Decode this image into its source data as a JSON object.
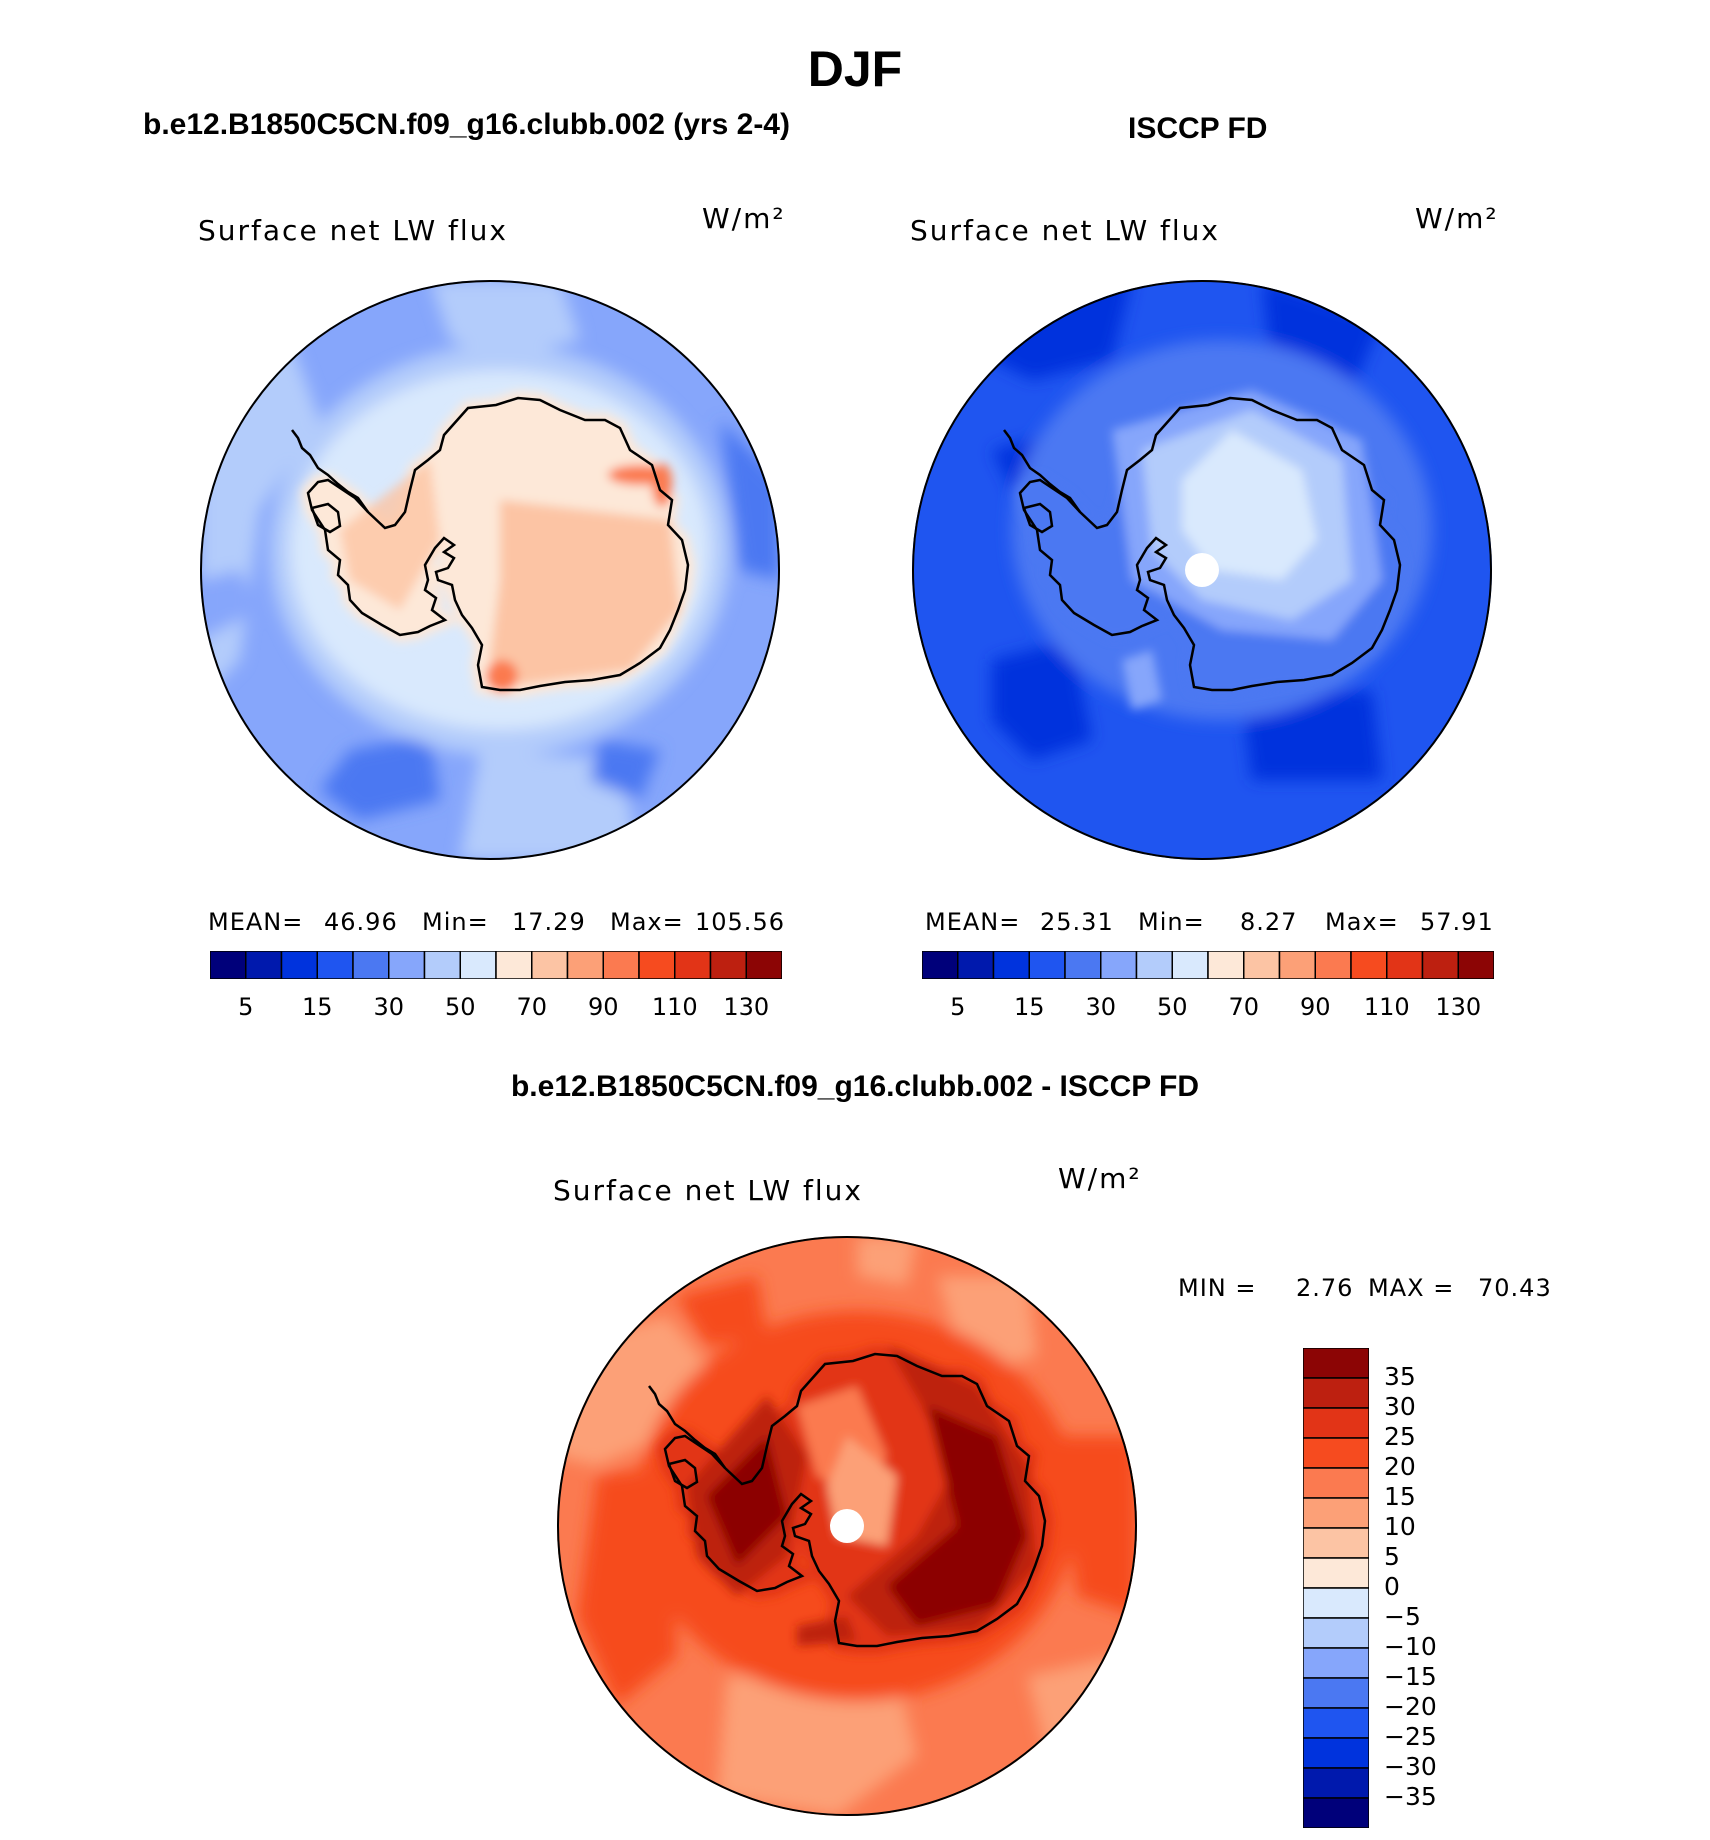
{
  "season": "DJF",
  "panels": {
    "model": {
      "header": "b.e12.B1850C5CN.f09_g16.clubb.002 (yrs 2-4)",
      "variable": "Surface net LW flux",
      "units": "W/m²",
      "mean_label": "MEAN=",
      "mean": "46.96",
      "min_label": "Min=",
      "min": "17.29",
      "max_label": "Max=",
      "max": "105.56"
    },
    "obs": {
      "header": "ISCCP FD",
      "variable": "Surface net LW flux",
      "units": "W/m²",
      "mean_label": "MEAN=",
      "mean": "25.31",
      "min_label": "Min=",
      "min": "8.27",
      "max_label": "Max=",
      "max": "57.91"
    },
    "diff": {
      "header": "b.e12.B1850C5CN.f09_g16.clubb.002 - ISCCP FD",
      "variable": "Surface net LW flux",
      "units": "W/m²",
      "min_label": "MIN =",
      "min": "2.76",
      "max_label": "MAX =",
      "max": "70.43"
    }
  },
  "colorbar_abs": {
    "ticks": [
      "5",
      "15",
      "30",
      "50",
      "70",
      "90",
      "110",
      "130"
    ],
    "colors": [
      "#00007a",
      "#0019ad",
      "#0033dd",
      "#1f55f0",
      "#4b78f2",
      "#86a6fb",
      "#b3ccfb",
      "#d9e9fd",
      "#fde8d8",
      "#fcc4a4",
      "#fca077",
      "#fb7a50",
      "#f64b1f",
      "#e23417",
      "#bd2010",
      "#8c0505"
    ]
  },
  "colorbar_diff": {
    "ticks": [
      "35",
      "30",
      "25",
      "20",
      "15",
      "10",
      "5",
      "0",
      "−5",
      "−10",
      "−15",
      "−20",
      "−25",
      "−30",
      "−35"
    ],
    "colors": [
      "#8c0505",
      "#bd2010",
      "#e23417",
      "#f64b1f",
      "#fb7a50",
      "#fca077",
      "#fcc4a4",
      "#fde8d8",
      "#d9e9fd",
      "#b3ccfb",
      "#86a6fb",
      "#4b78f2",
      "#1f55f0",
      "#0033dd",
      "#0019ad",
      "#00007a"
    ]
  },
  "chart_data": [
    {
      "type": "heatmap",
      "projection": "south-polar-stereographic",
      "title": "Surface net LW flux",
      "subtitle": "b.e12.B1850C5CN.f09_g16.clubb.002 (yrs 2-4)",
      "units": "W/m²",
      "mean": 46.96,
      "min": 17.29,
      "max": 105.56,
      "levels": [
        5,
        10,
        15,
        20,
        30,
        40,
        50,
        60,
        70,
        80,
        90,
        100,
        110,
        120,
        130
      ],
      "zones": {
        "ocean_far": 40,
        "ocean_mid": 45,
        "sea_ice_margin": 55,
        "antarctic_coast": 65,
        "antarctic_interior": 75,
        "hotspots": 95
      }
    },
    {
      "type": "heatmap",
      "projection": "south-polar-stereographic",
      "title": "Surface net LW flux",
      "subtitle": "ISCCP FD",
      "units": "W/m²",
      "mean": 25.31,
      "min": 8.27,
      "max": 57.91,
      "levels": [
        5,
        10,
        15,
        20,
        30,
        40,
        50,
        60,
        70,
        80,
        90,
        100,
        110,
        120,
        130
      ],
      "zones": {
        "ocean_far": 22,
        "ocean_mid": 27,
        "coastal": 32,
        "antarctic_interior": 45,
        "plateau_center": 55
      }
    },
    {
      "type": "heatmap",
      "projection": "south-polar-stereographic",
      "title": "Surface net LW flux",
      "subtitle": "b.e12.B1850C5CN.f09_g16.clubb.002 - ISCCP FD",
      "units": "W/m²",
      "min": 2.76,
      "max": 70.43,
      "levels": [
        -35,
        -30,
        -25,
        -20,
        -15,
        -10,
        -5,
        0,
        5,
        10,
        15,
        20,
        25,
        30,
        35
      ],
      "zones": {
        "ocean_far": 17,
        "ocean_mid": 22,
        "coastal": 28,
        "antarctic_interior": 38,
        "plateau_center": 12
      }
    }
  ]
}
